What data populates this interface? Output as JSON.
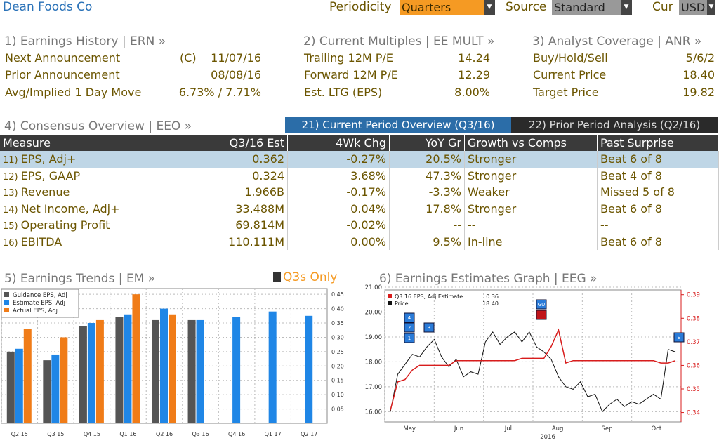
{
  "header": {
    "company": "Dean Foods Co",
    "periodicity_label": "Periodicity",
    "periodicity_value": "Quarters",
    "source_label": "Source",
    "source_value": "Standard",
    "cur_label": "Cur",
    "cur_value": "USD"
  },
  "erh": {
    "title": "1) Earnings History | ERN »",
    "rows": [
      {
        "label": "Next Announcement",
        "prefix": "(C)",
        "value": "11/07/16"
      },
      {
        "label": "Prior Announcement",
        "prefix": "",
        "value": "08/08/16"
      },
      {
        "label": "Avg/Implied 1 Day Move",
        "prefix": "",
        "value": "6.73% / 7.71%"
      }
    ]
  },
  "mult": {
    "title": "2) Current Multiples | EE MULT »",
    "rows": [
      {
        "label": "Trailing 12M P/E",
        "value": "14.24"
      },
      {
        "label": "Forward 12M P/E",
        "value": "12.29"
      },
      {
        "label": "Est. LTG (EPS)",
        "value": "8.00%"
      }
    ]
  },
  "anr": {
    "title": "3) Analyst Coverage | ANR »",
    "rows": [
      {
        "label": "Buy/Hold/Sell",
        "value": "5/6/2"
      },
      {
        "label": "Current Price",
        "value": "18.40"
      },
      {
        "label": "Target Price",
        "value": "19.82"
      }
    ]
  },
  "consensus": {
    "title": "4) Consensus Overview | EEO »",
    "tab_current": "21) Current Period Overview (Q3/16)",
    "tab_prior": "22) Prior Period Analysis (Q2/16)",
    "headers": [
      "Measure",
      "Q3/16 Est",
      "4Wk Chg",
      "YoY Gr",
      "Growth vs Comps",
      "Past Surprise"
    ],
    "rows": [
      {
        "num": "11)",
        "measure": "EPS, Adj+",
        "est": "0.362",
        "chg": "-0.27%",
        "chg_cls": "neg",
        "yoy": "20.5%",
        "yoy_cls": "pos",
        "comp": "Stronger",
        "surp": "Beat 6 of 8"
      },
      {
        "num": "12)",
        "measure": "EPS, GAAP",
        "est": "0.324",
        "chg": "3.68%",
        "chg_cls": "pos",
        "yoy": "47.3%",
        "yoy_cls": "pos",
        "comp": "Stronger",
        "surp": "Beat 4 of 8"
      },
      {
        "num": "13)",
        "measure": "Revenue",
        "est": "1.966B",
        "chg": "-0.17%",
        "chg_cls": "neg",
        "yoy": "-3.3%",
        "yoy_cls": "neg",
        "comp": "Weaker",
        "surp": "Missed 5 of 8"
      },
      {
        "num": "14)",
        "measure": "Net Income, Adj+",
        "est": "33.488M",
        "chg": "0.04%",
        "chg_cls": "pos",
        "yoy": "17.8%",
        "yoy_cls": "pos",
        "comp": "Stronger",
        "surp": "Beat 6 of 8"
      },
      {
        "num": "15)",
        "measure": "Operating Profit",
        "est": "69.814M",
        "chg": "-0.02%",
        "chg_cls": "neg",
        "yoy": "--",
        "yoy_cls": "",
        "comp": "--",
        "surp": "--"
      },
      {
        "num": "16)",
        "measure": "EBITDA",
        "est": "110.111M",
        "chg": "0.00%",
        "chg_cls": "",
        "yoy": "9.5%",
        "yoy_cls": "pos",
        "comp": "In-line",
        "surp": "Beat 6 of 8"
      }
    ]
  },
  "trends": {
    "title": "5) Earnings Trends | EM »",
    "q3s_label": "Q3s Only"
  },
  "eeg": {
    "title": "6) Earnings Estimates Graph | EEG »"
  },
  "chart_data": [
    {
      "type": "bar",
      "categories": [
        "Q2 15",
        "Q3 15",
        "Q4 15",
        "Q1 16",
        "Q2 16",
        "Q3 16",
        "Q4 16",
        "Q1 17",
        "Q2 17"
      ],
      "series": [
        {
          "name": "Guidance EPS, Adj",
          "color": "#555555",
          "values": [
            0.25,
            0.22,
            0.34,
            0.37,
            0.36,
            0.36,
            null,
            null,
            null
          ]
        },
        {
          "name": "Estimate EPS, Adj",
          "color": "#1f86e6",
          "values": [
            0.26,
            0.24,
            0.35,
            0.38,
            0.4,
            0.36,
            0.37,
            0.39,
            0.375
          ]
        },
        {
          "name": "Actual EPS, Adj",
          "color": "#f07c18",
          "values": [
            0.33,
            0.3,
            0.36,
            0.45,
            0.38,
            null,
            null,
            null,
            null
          ]
        }
      ],
      "ylim": [
        0,
        0.47
      ],
      "yticks": [
        "0.05",
        "0.10",
        "0.15",
        "0.20",
        "0.25",
        "0.30",
        "0.35",
        "0.40",
        "0.45"
      ],
      "legend": "top-left"
    },
    {
      "type": "line",
      "x_labels": [
        "May",
        "Jun",
        "Jul",
        "Aug",
        "Sep",
        "Oct"
      ],
      "x_year": "2016",
      "legend": [
        {
          "name": "Q3 16 EPS, Adj Estimate",
          "value": "0.36",
          "color": "#d81c1c"
        },
        {
          "name": "Price",
          "value": "18.40",
          "color": "#111111"
        }
      ],
      "left_ticks": [
        "16.00",
        "17.00",
        "18.00",
        "19.00",
        "20.00",
        "21.00"
      ],
      "right_ticks": [
        "0.34",
        "0.35",
        "0.36",
        "0.37",
        "0.38",
        "0.39"
      ],
      "price": [
        16.0,
        17.5,
        17.9,
        18.3,
        18.2,
        18.6,
        18.9,
        18.2,
        17.8,
        18.1,
        17.4,
        17.6,
        17.5,
        18.8,
        19.2,
        18.7,
        19.0,
        19.2,
        18.8,
        19.2,
        18.6,
        18.4,
        18.1,
        17.4,
        17.0,
        16.9,
        17.2,
        16.6,
        16.7,
        16.0,
        16.3,
        16.5,
        16.2,
        16.4,
        16.3,
        16.5,
        16.7,
        16.5,
        18.5,
        18.4
      ],
      "estimate": [
        0.341,
        0.353,
        0.354,
        0.358,
        0.36,
        0.36,
        0.36,
        0.36,
        0.36,
        0.362,
        0.362,
        0.362,
        0.362,
        0.362,
        0.362,
        0.362,
        0.362,
        0.362,
        0.363,
        0.363,
        0.363,
        0.363,
        0.368,
        0.375,
        0.361,
        0.362,
        0.362,
        0.362,
        0.362,
        0.362,
        0.362,
        0.362,
        0.362,
        0.362,
        0.362,
        0.362,
        0.362,
        0.361,
        0.361,
        0.362
      ],
      "markers": [
        {
          "label": "4"
        },
        {
          "label": "2"
        },
        {
          "label": "1"
        },
        {
          "label": "3"
        },
        {
          "label": "GU"
        },
        {
          "label": "E"
        }
      ]
    }
  ]
}
